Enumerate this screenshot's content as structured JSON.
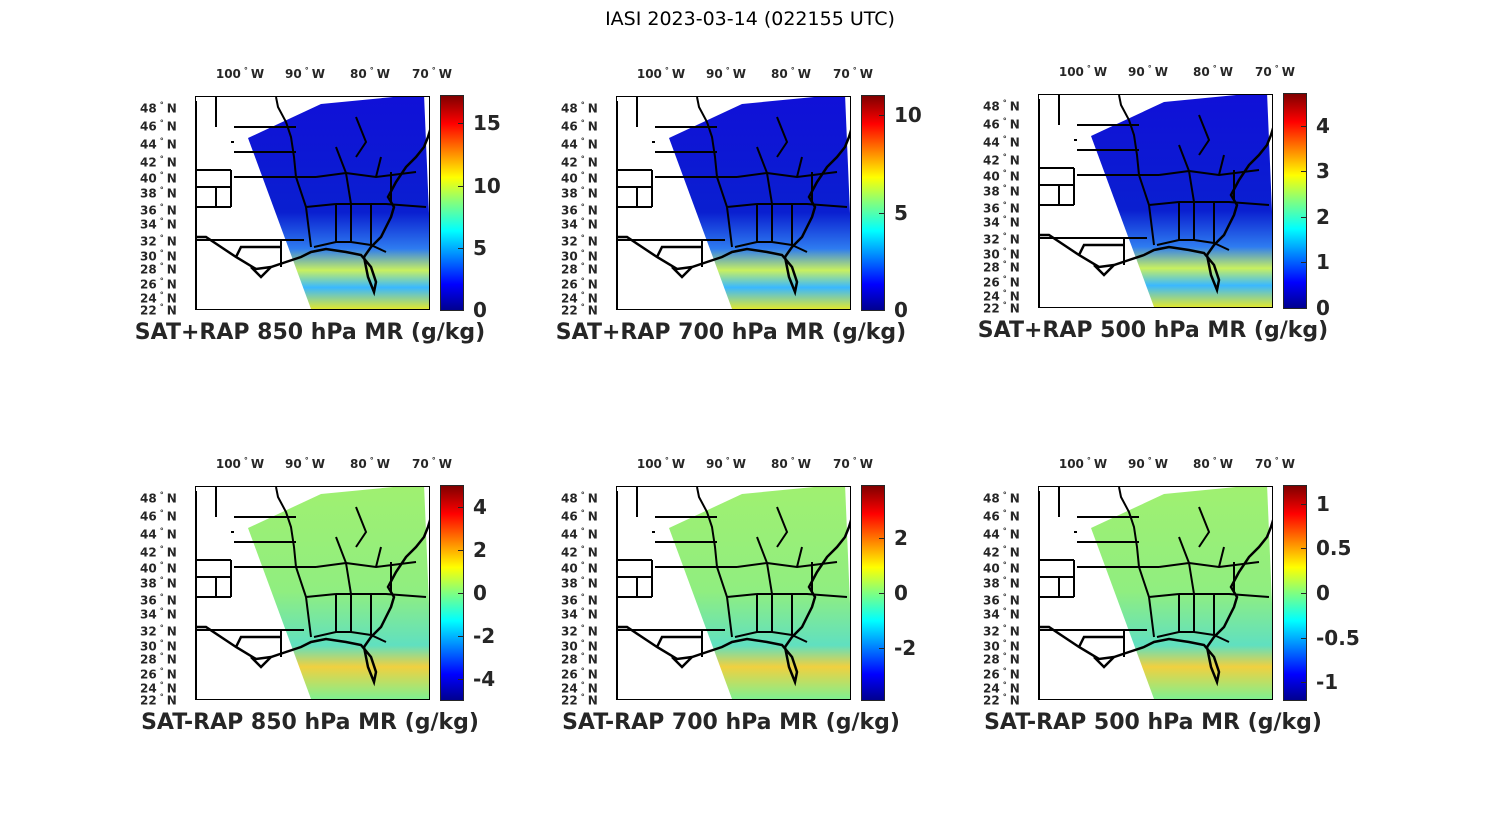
{
  "figure": {
    "title": "IASI 2023-03-14 (022155 UTC)"
  },
  "lon_labels": [
    {
      "value": "100",
      "hemi": "W"
    },
    {
      "value": "90",
      "hemi": "W"
    },
    {
      "value": "80",
      "hemi": "W"
    },
    {
      "value": "70",
      "hemi": "W"
    }
  ],
  "lat_labels": [
    {
      "value": "48",
      "hemi": "N"
    },
    {
      "value": "46",
      "hemi": "N"
    },
    {
      "value": "44",
      "hemi": "N"
    },
    {
      "value": "42",
      "hemi": "N"
    },
    {
      "value": "40",
      "hemi": "N"
    },
    {
      "value": "38",
      "hemi": "N"
    },
    {
      "value": "36",
      "hemi": "N"
    },
    {
      "value": "34",
      "hemi": "N"
    },
    {
      "value": "32",
      "hemi": "N"
    },
    {
      "value": "30",
      "hemi": "N"
    },
    {
      "value": "28",
      "hemi": "N"
    },
    {
      "value": "26",
      "hemi": "N"
    },
    {
      "value": "24",
      "hemi": "N"
    },
    {
      "value": "22",
      "hemi": "N"
    }
  ],
  "colormap": "jet",
  "panels": [
    {
      "title": "SAT+RAP 850 hPa MR (g/kg)",
      "kind": "sum",
      "clim": [
        0,
        17.2
      ],
      "ticks": [
        "0",
        "5",
        "10",
        "15"
      ]
    },
    {
      "title": "SAT+RAP 700 hPa MR (g/kg)",
      "kind": "sum",
      "clim": [
        0,
        11
      ],
      "ticks": [
        "0",
        "5",
        "10"
      ]
    },
    {
      "title": "SAT+RAP 500 hPa MR (g/kg)",
      "kind": "sum",
      "clim": [
        0,
        4.7
      ],
      "ticks": [
        "0",
        "1",
        "2",
        "3",
        "4"
      ]
    },
    {
      "title": "SAT-RAP 850 hPa MR (g/kg)",
      "kind": "diff",
      "clim": [
        -5,
        5
      ],
      "ticks": [
        "-4",
        "-2",
        "0",
        "2",
        "4"
      ]
    },
    {
      "title": "SAT-RAP 700 hPa MR (g/kg)",
      "kind": "diff",
      "clim": [
        -3.9,
        3.9
      ],
      "ticks": [
        "-2",
        "0",
        "2"
      ]
    },
    {
      "title": "SAT-RAP 500 hPa MR (g/kg)",
      "kind": "diff",
      "clim": [
        -1.2,
        1.2
      ],
      "ticks": [
        "-1",
        "-0.5",
        "0",
        "0.5",
        "1"
      ]
    }
  ]
}
